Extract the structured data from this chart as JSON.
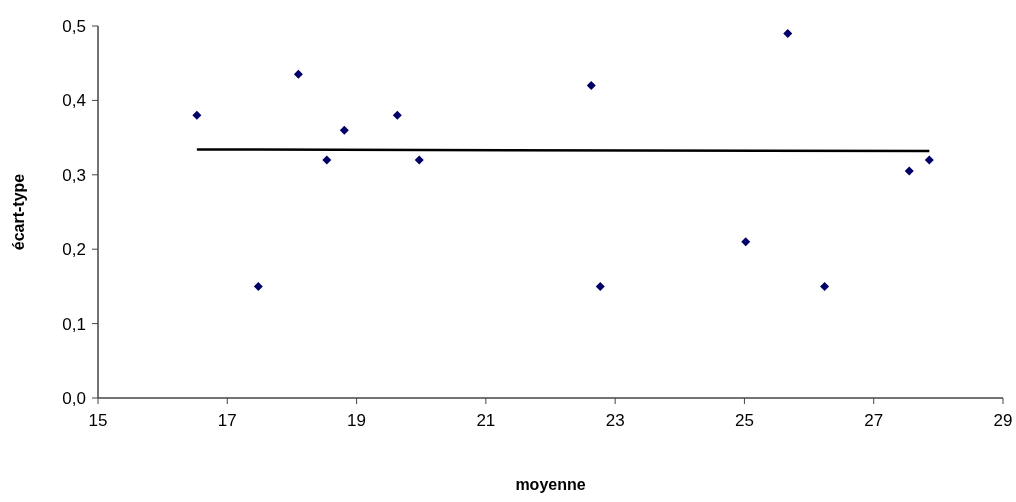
{
  "chart_data": {
    "type": "scatter",
    "xlabel": "moyenne",
    "ylabel": "écart-type",
    "xlim": [
      15,
      29
    ],
    "xticks": [
      15,
      17,
      19,
      21,
      23,
      25,
      27,
      29
    ],
    "ylim": [
      0,
      0.5
    ],
    "yticks": [
      {
        "value": 0,
        "label": "0,0"
      },
      {
        "value": 0.1,
        "label": "0,1"
      },
      {
        "value": 0.2,
        "label": "0,2"
      },
      {
        "value": 0.3,
        "label": "0,3"
      },
      {
        "value": 0.4,
        "label": "0,4"
      },
      {
        "value": 0.5,
        "label": "0,5"
      }
    ],
    "marker": "diamond",
    "series": [
      {
        "color": "#000066",
        "x": [
          16.53,
          17.48,
          18.1,
          18.54,
          18.81,
          19.63,
          19.97,
          22.63,
          22.77,
          25.02,
          25.67,
          26.24,
          27.55,
          27.86
        ],
        "values": [
          0.38,
          0.15,
          0.435,
          0.32,
          0.36,
          0.38,
          0.32,
          0.42,
          0.15,
          0.21,
          0.49,
          0.15,
          0.305,
          0.32
        ]
      },
      {
        "type": "line",
        "color": "#000000",
        "line_style": "solid",
        "marker": "none",
        "x": [
          16.53,
          27.86
        ],
        "values": [
          0.334,
          0.332
        ]
      }
    ]
  }
}
